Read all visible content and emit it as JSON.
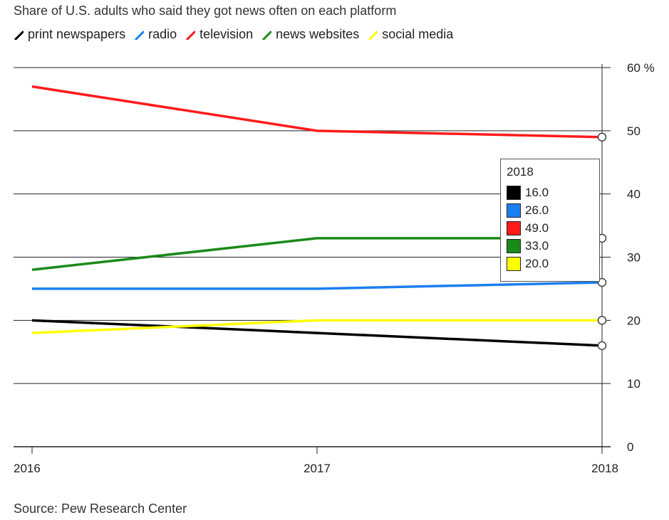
{
  "chart_data": {
    "type": "line",
    "title": "Share of U.S. adults who said they got news often on each platform",
    "x": [
      "2016",
      "2017",
      "2018"
    ],
    "ylim": [
      0,
      60
    ],
    "yticks": [
      0,
      10,
      20,
      30,
      40,
      50,
      60
    ],
    "ytick_labels": [
      "0",
      "10",
      "20",
      "30",
      "40",
      "50",
      "60 %"
    ],
    "grid": true,
    "legend_position": "top",
    "series": [
      {
        "name": "print newspapers",
        "color": "#000000",
        "values": [
          20,
          18,
          16
        ]
      },
      {
        "name": "radio",
        "color": "#1a7ff0",
        "values": [
          25,
          25,
          26
        ]
      },
      {
        "name": "television",
        "color": "#ff1a1a",
        "values": [
          57,
          50,
          49
        ]
      },
      {
        "name": "news websites",
        "color": "#1a8a1a",
        "values": [
          28,
          33,
          33
        ]
      },
      {
        "name": "social media",
        "color": "#ffff00",
        "values": [
          18,
          20,
          20
        ]
      }
    ],
    "source": "Source: Pew Research Center"
  },
  "tooltip": {
    "year": "2018",
    "rows": [
      {
        "color": "#000000",
        "value": "16.0"
      },
      {
        "color": "#1a7ff0",
        "value": "26.0"
      },
      {
        "color": "#ff1a1a",
        "value": "49.0"
      },
      {
        "color": "#1a8a1a",
        "value": "33.0"
      },
      {
        "color": "#ffff00",
        "value": "20.0"
      }
    ]
  }
}
